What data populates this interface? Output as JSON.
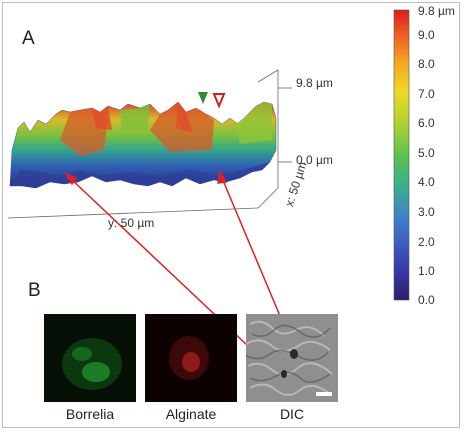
{
  "panel_a": {
    "label": "A",
    "z_top_label": "9.8 µm",
    "z_zero_label": "0.0 µm",
    "x_axis_label": "x: 50 µm",
    "y_axis_label": "y: 50 µm",
    "marker_colors": {
      "green": "#2e8b2e",
      "red": "#d21e1e"
    }
  },
  "colorbar": {
    "ticks": [
      "9.8 µm",
      "9.0",
      "8.0",
      "7.0",
      "6.0",
      "5.0",
      "4.0",
      "3.0",
      "2.0",
      "1.0",
      "0.0"
    ],
    "colors": [
      "#2c1f6b",
      "#3a3fb0",
      "#3f7fc8",
      "#38b28c",
      "#5dc24f",
      "#a8d233",
      "#f0d824",
      "#f5a623",
      "#ec5a22",
      "#d91e1e"
    ]
  },
  "panel_b": {
    "label": "B",
    "images": [
      {
        "label": "Borrelia",
        "tint": "#1fae2f"
      },
      {
        "label": "Alginate",
        "tint": "#b01717"
      },
      {
        "label": "DIC",
        "tint": "#9a9a9a"
      }
    ]
  },
  "arrows": {
    "color": "#e02020"
  }
}
